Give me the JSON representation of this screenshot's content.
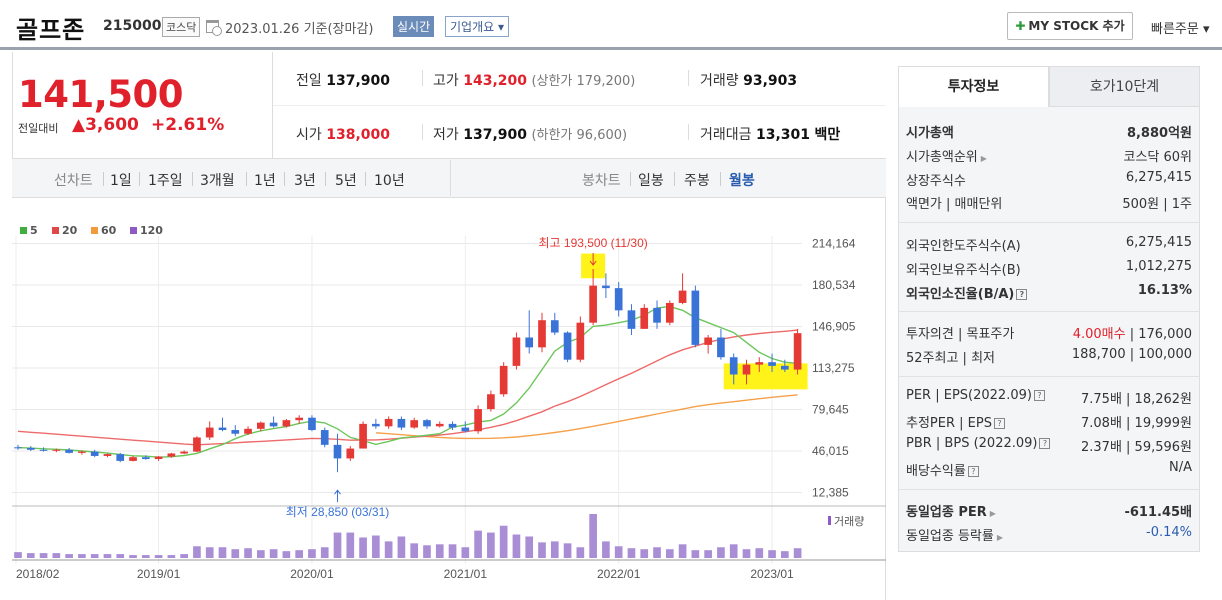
{
  "header": {
    "company_name": "골프존",
    "code": "215000",
    "market": "코스닥",
    "date_text": "2023.01.26 기준(장마감)",
    "realtime_label": "실시간",
    "overview_label": "기업개요 ▾",
    "mystock_label": "MY STOCK 추가",
    "quick_order_label": "빠른주문 ▾"
  },
  "price": {
    "current": "141,500",
    "change_label": "전일대비",
    "change_value": "▲3,600",
    "change_pct": "+2.61%",
    "prev_close_label": "전일",
    "prev_close": "137,900",
    "high_label": "고가",
    "high": "143,200",
    "upper_limit": "(상한가 179,200)",
    "volume_label": "거래량",
    "volume": "93,903",
    "open_label": "시가",
    "open": "138,000",
    "low_label": "저가",
    "low": "137,900",
    "lower_limit": "(하한가 96,600)",
    "amount_label": "거래대금",
    "amount": "13,301",
    "amount_unit": "백만"
  },
  "toolbar": {
    "line_label": "선차트",
    "periods": [
      "1일",
      "1주일",
      "3개월",
      "1년",
      "3년",
      "5년",
      "10년"
    ],
    "candle_label": "봉차트",
    "candle_periods": [
      "일봉",
      "주봉",
      "월봉"
    ]
  },
  "panel": {
    "tab_invest": "투자정보",
    "tab_quote": "호가10단계",
    "rows1": [
      {
        "k": "시가총액",
        "v": "8,880억원"
      },
      {
        "k": "시가총액순위",
        "v": "코스닥 60위"
      },
      {
        "k": "상장주식수",
        "v": "6,275,415"
      },
      {
        "k": "액면가 | 매매단위",
        "v": "500원 | 1주"
      }
    ],
    "rows2": [
      {
        "k": "외국인한도주식수(A)",
        "v": "6,275,415"
      },
      {
        "k": "외국인보유주식수(B)",
        "v": "1,012,275"
      },
      {
        "k": "외국인소진율(B/A)",
        "v": "16.13%"
      }
    ],
    "rows3": [
      {
        "k": "투자의견 | 목표주가",
        "v1": "4.00매수",
        "v2": " | 176,000"
      },
      {
        "k": "52주최고 | 최저",
        "v": "188,700 | 100,000"
      }
    ],
    "rows4": [
      {
        "k": "PER | EPS(2022.09)",
        "v": "7.75배 | 18,262원"
      },
      {
        "k": "추정PER | EPS",
        "v": "7.08배 | 19,999원"
      },
      {
        "k": "PBR | BPS (2022.09)",
        "v": "2.37배 | 59,596원"
      },
      {
        "k": "배당수익률",
        "v": "N/A"
      }
    ],
    "rows5": [
      {
        "k": "동일업종 PER",
        "v": "-611.45배"
      },
      {
        "k": "동일업종 등락률",
        "v": "-0.14%"
      }
    ]
  },
  "chart_data": {
    "type": "candlestick",
    "period": "monthly",
    "legend": [
      {
        "name": "5",
        "color": "#3fae3f"
      },
      {
        "name": "20",
        "color": "#e04848"
      },
      {
        "name": "60",
        "color": "#f39a3a"
      },
      {
        "name": "120",
        "color": "#8e5bc4"
      }
    ],
    "y_ticks": [
      "214,164",
      "180,534",
      "146,905",
      "113,275",
      "79,645",
      "46,015",
      "12,385"
    ],
    "y_tick_values": [
      214164,
      180534,
      146905,
      113275,
      79645,
      46015,
      12385
    ],
    "x_ticks": [
      "2018/02",
      "2019/01",
      "2020/01",
      "2021/01",
      "2022/01",
      "2023/01"
    ],
    "annotation_high": "최고 193,500 (11/30)",
    "annotation_low": "최저 28,850 (03/31)",
    "volume_label": "거래량",
    "candles": [
      [
        49000,
        51000,
        47000,
        48500
      ],
      [
        48500,
        50000,
        46000,
        47000
      ],
      [
        47000,
        49000,
        45500,
        46500
      ],
      [
        46500,
        48000,
        45000,
        47000
      ],
      [
        47000,
        48500,
        44000,
        44500
      ],
      [
        44500,
        46500,
        43000,
        45500
      ],
      [
        45500,
        47000,
        41000,
        42000
      ],
      [
        42000,
        44000,
        41000,
        43500
      ],
      [
        43500,
        44500,
        37000,
        38000
      ],
      [
        38000,
        42000,
        37500,
        41000
      ],
      [
        41000,
        42500,
        39000,
        39500
      ],
      [
        39500,
        42000,
        38000,
        41500
      ],
      [
        41500,
        44500,
        40500,
        44000
      ],
      [
        44000,
        46500,
        43500,
        45500
      ],
      [
        45500,
        58000,
        45000,
        57000
      ],
      [
        57000,
        70000,
        55000,
        65000
      ],
      [
        65000,
        73000,
        62000,
        63000
      ],
      [
        63000,
        67000,
        58000,
        60000
      ],
      [
        60000,
        66000,
        59000,
        64000
      ],
      [
        64000,
        70000,
        62000,
        69000
      ],
      [
        69000,
        74000,
        65000,
        66000
      ],
      [
        66000,
        72000,
        65000,
        71000
      ],
      [
        71000,
        75000,
        68000,
        73000
      ],
      [
        73000,
        75000,
        62000,
        63000
      ],
      [
        63000,
        65000,
        49000,
        51000
      ],
      [
        51000,
        60000,
        28850,
        40000
      ],
      [
        40000,
        50000,
        38000,
        48000
      ],
      [
        48000,
        70000,
        48000,
        68000
      ],
      [
        68000,
        72000,
        64000,
        66000
      ],
      [
        66000,
        74000,
        64000,
        72000
      ],
      [
        72000,
        74000,
        63000,
        65000
      ],
      [
        65000,
        73000,
        64000,
        71000
      ],
      [
        71000,
        72000,
        64000,
        66000
      ],
      [
        66000,
        70000,
        65000,
        68000
      ],
      [
        68000,
        70000,
        63000,
        65000
      ],
      [
        65000,
        70000,
        61000,
        62000
      ],
      [
        62000,
        83000,
        60000,
        80000
      ],
      [
        80000,
        95000,
        78000,
        92000
      ],
      [
        92000,
        118000,
        90000,
        115000
      ],
      [
        115000,
        142000,
        112000,
        138000
      ],
      [
        138000,
        160000,
        125000,
        130000
      ],
      [
        130000,
        158000,
        126000,
        152000
      ],
      [
        152000,
        158000,
        140000,
        142000
      ],
      [
        142000,
        143000,
        118000,
        120000
      ],
      [
        120000,
        155000,
        118000,
        150000
      ],
      [
        150000,
        193500,
        148000,
        180000
      ],
      [
        180000,
        190000,
        170000,
        178000
      ],
      [
        178000,
        183000,
        155000,
        160000
      ],
      [
        160000,
        165000,
        140000,
        145000
      ],
      [
        145000,
        165000,
        145000,
        162000
      ],
      [
        162000,
        168000,
        145000,
        150000
      ],
      [
        150000,
        168000,
        148000,
        166000
      ],
      [
        166000,
        190000,
        165000,
        176000
      ],
      [
        176000,
        180000,
        130000,
        132000
      ],
      [
        132000,
        140000,
        125000,
        138000
      ],
      [
        138000,
        145000,
        120000,
        122000
      ],
      [
        122000,
        125000,
        100000,
        108000
      ],
      [
        108000,
        120000,
        100000,
        116000
      ],
      [
        116000,
        122000,
        110000,
        118000
      ],
      [
        118000,
        125000,
        110000,
        115000
      ],
      [
        115000,
        120000,
        110000,
        112000
      ],
      [
        112000,
        145000,
        108000,
        141500
      ]
    ],
    "ma5": [
      48800,
      48400,
      47800,
      47400,
      46800,
      46000,
      45200,
      44300,
      43200,
      42100,
      41800,
      41000,
      41400,
      42400,
      44100,
      47800,
      51200,
      56000,
      59800,
      62400,
      64200,
      65800,
      68400,
      70200,
      68800,
      64000,
      57000,
      54400,
      51400,
      53800,
      56600,
      57600,
      58800,
      60000,
      65500,
      67000,
      69500,
      70800,
      76000,
      85000,
      97000,
      112000,
      127000,
      134000,
      138000,
      147000,
      148000,
      150000,
      152000,
      156000,
      162000,
      163000,
      160000,
      154000,
      150000,
      146000,
      142000,
      134000,
      126000,
      121000,
      118000,
      117000
    ],
    "ma20": [
      62000,
      61200,
      60400,
      59600,
      58800,
      58000,
      57200,
      56400,
      55600,
      54800,
      54000,
      53200,
      52400,
      51600,
      51000,
      51500,
      52000,
      52700,
      53300,
      53800,
      54400,
      55000,
      55600,
      56200,
      56000,
      55500,
      54800,
      54900,
      55000,
      55600,
      56400,
      57300,
      58000,
      58900,
      60000,
      61600,
      63200,
      65200,
      67600,
      70600,
      74200,
      77800,
      82400,
      86000,
      90200,
      95000,
      99800,
      104500,
      109000,
      114000,
      119000,
      124000,
      128000,
      131000,
      134000,
      136500,
      138500,
      140000,
      141200,
      142200,
      143000,
      144000
    ],
    "ma60": [
      null,
      null,
      null,
      null,
      null,
      null,
      null,
      null,
      null,
      null,
      null,
      null,
      null,
      null,
      null,
      null,
      null,
      null,
      null,
      null,
      null,
      null,
      null,
      null,
      null,
      null,
      null,
      null,
      60800,
      60000,
      59200,
      58400,
      57700,
      57000,
      56500,
      56200,
      56200,
      56300,
      56700,
      57400,
      58400,
      59600,
      61000,
      62500,
      64200,
      66000,
      68000,
      70000,
      72000,
      74000,
      76000,
      78000,
      80000,
      82000,
      83500,
      84800,
      86000,
      87200,
      88400,
      89500,
      90500,
      91500
    ],
    "volume": [
      6,
      5,
      5,
      5,
      4,
      4,
      4,
      4,
      4,
      3,
      3,
      3,
      3,
      4,
      12,
      11,
      11,
      9,
      10,
      8,
      9,
      7,
      8,
      9,
      11,
      26,
      26,
      21,
      23,
      17,
      22,
      15,
      13,
      14,
      14,
      11,
      28,
      26,
      33,
      24,
      22,
      16,
      17,
      15,
      11,
      45,
      17,
      12,
      10,
      9,
      11,
      9,
      14,
      8,
      8,
      11,
      14,
      9,
      10,
      8,
      7,
      10
    ]
  }
}
